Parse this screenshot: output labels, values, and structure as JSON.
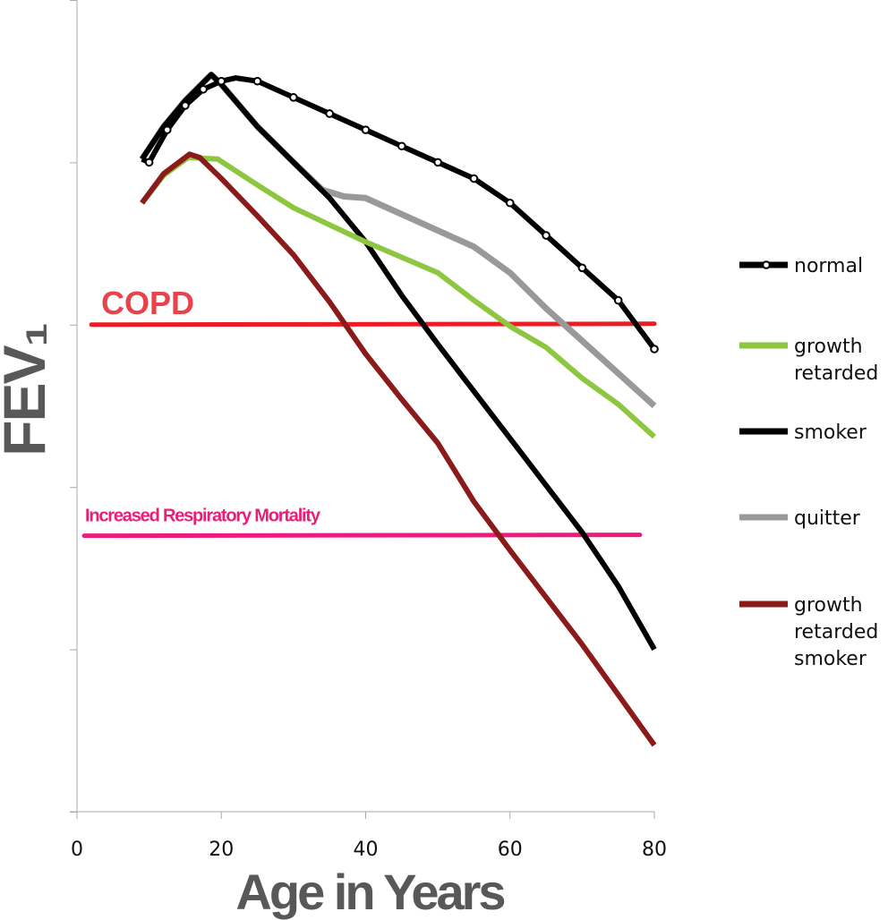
{
  "chart_data": {
    "type": "line",
    "xlabel": "Age in Years",
    "ylabel": "FEV₁",
    "xlim": [
      0,
      80
    ],
    "ylim": [
      0,
      5
    ],
    "x_ticks": [
      0,
      20,
      40,
      60,
      80
    ],
    "x_tick_labels": [
      "0",
      "20",
      "40",
      "60",
      "80"
    ],
    "y_ticks": [
      0,
      1,
      2,
      3,
      4,
      5
    ],
    "y_tick_labels_shown": false,
    "grid": false,
    "legend_placement": "right",
    "series": [
      {
        "name": "normal",
        "color": "#000000",
        "markers": true,
        "points": [
          [
            9,
            4.02
          ],
          [
            10,
            4.0
          ],
          [
            12.5,
            4.2
          ],
          [
            15,
            4.35
          ],
          [
            17.5,
            4.45
          ],
          [
            20,
            4.5
          ],
          [
            22,
            4.52
          ],
          [
            25,
            4.5
          ],
          [
            30,
            4.4
          ],
          [
            35,
            4.3
          ],
          [
            40,
            4.2
          ],
          [
            45,
            4.1
          ],
          [
            50,
            4.0
          ],
          [
            55,
            3.9
          ],
          [
            60,
            3.75
          ],
          [
            65,
            3.55
          ],
          [
            70,
            3.35
          ],
          [
            75,
            3.15
          ],
          [
            80,
            2.85
          ]
        ],
        "marker_x": [
          10,
          12.5,
          15,
          17.5,
          20,
          25,
          30,
          35,
          40,
          45,
          50,
          55,
          60,
          65,
          70,
          75,
          80
        ]
      },
      {
        "name": "growth retarded",
        "color": "#8dc63f",
        "points": [
          [
            9,
            3.75
          ],
          [
            12,
            3.92
          ],
          [
            15.4,
            4.03
          ],
          [
            19.5,
            4.02
          ],
          [
            25,
            3.86
          ],
          [
            30,
            3.72
          ],
          [
            40,
            3.51
          ],
          [
            50,
            3.32
          ],
          [
            55,
            3.15
          ],
          [
            60,
            2.99
          ],
          [
            65,
            2.86
          ],
          [
            70,
            2.67
          ],
          [
            75,
            2.51
          ],
          [
            80,
            2.31
          ]
        ]
      },
      {
        "name": "smoker",
        "color": "#000000",
        "points": [
          [
            9,
            4.02
          ],
          [
            12,
            4.22
          ],
          [
            15,
            4.38
          ],
          [
            18.6,
            4.54
          ],
          [
            20,
            4.48
          ],
          [
            25,
            4.22
          ],
          [
            30,
            4.0
          ],
          [
            35,
            3.78
          ],
          [
            40,
            3.51
          ],
          [
            45,
            3.18
          ],
          [
            50,
            2.88
          ],
          [
            55,
            2.59
          ],
          [
            60,
            2.3
          ],
          [
            65,
            2.01
          ],
          [
            70,
            1.72
          ],
          [
            75,
            1.39
          ],
          [
            80,
            1.0
          ]
        ]
      },
      {
        "name": "quitter",
        "color": "#999999",
        "points": [
          [
            9,
            4.02
          ],
          [
            12,
            4.22
          ],
          [
            15,
            4.38
          ],
          [
            18.6,
            4.54
          ],
          [
            20,
            4.48
          ],
          [
            25,
            4.22
          ],
          [
            30,
            4.0
          ],
          [
            34,
            3.83
          ],
          [
            37,
            3.79
          ],
          [
            40,
            3.78
          ],
          [
            45,
            3.68
          ],
          [
            50,
            3.58
          ],
          [
            55,
            3.48
          ],
          [
            60,
            3.32
          ],
          [
            65,
            3.1
          ],
          [
            70,
            2.9
          ],
          [
            75,
            2.7
          ],
          [
            80,
            2.5
          ]
        ]
      },
      {
        "name": "growth retarded smoker",
        "color": "#8b1a1a",
        "points": [
          [
            9,
            3.75
          ],
          [
            12,
            3.93
          ],
          [
            15.6,
            4.05
          ],
          [
            17,
            4.03
          ],
          [
            20,
            3.9
          ],
          [
            25,
            3.67
          ],
          [
            30,
            3.43
          ],
          [
            35,
            3.14
          ],
          [
            40,
            2.82
          ],
          [
            45,
            2.54
          ],
          [
            50,
            2.27
          ],
          [
            55,
            1.91
          ],
          [
            60,
            1.61
          ],
          [
            65,
            1.32
          ],
          [
            70,
            1.03
          ],
          [
            75,
            0.72
          ],
          [
            80,
            0.41
          ]
        ]
      }
    ],
    "annotations": [
      {
        "text": "COPD",
        "y": 3.0,
        "x_range": [
          2,
          80
        ],
        "color": "#ed1c24",
        "text_color": "#e8434a"
      },
      {
        "text": "Increased Respiratory Mortality",
        "y": 1.7,
        "x_range": [
          1,
          78
        ],
        "color": "#ed1c7c",
        "text_color": "#e91e78"
      }
    ]
  },
  "legend": {
    "items": [
      {
        "lines": [
          "normal"
        ],
        "color": "#000000",
        "markers": true
      },
      {
        "lines": [
          "growth",
          "retarded"
        ],
        "color": "#8dc63f"
      },
      {
        "lines": [
          "smoker"
        ],
        "color": "#000000"
      },
      {
        "lines": [
          "quitter"
        ],
        "color": "#999999"
      },
      {
        "lines": [
          "growth",
          "retarded",
          "smoker"
        ],
        "color": "#8b1a1a"
      }
    ]
  }
}
